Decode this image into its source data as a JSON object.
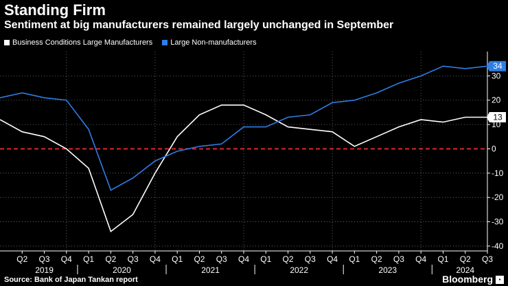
{
  "header": {
    "title": "Standing Firm",
    "subtitle": "Sentiment at big manufacturers remained largely unchanged in September"
  },
  "footer": {
    "source": "Source: Bank of Japan Tankan report",
    "brand": "Bloomberg"
  },
  "colors": {
    "manufacturers": "#ffffff",
    "non_manufacturers": "#2f7ee6",
    "zero_line": "#e0262b",
    "grid": "#777777"
  },
  "chart_data": {
    "type": "line",
    "title": "Standing Firm",
    "subtitle": "Sentiment at big manufacturers remained largely unchanged in September",
    "ylim": [
      -42,
      40
    ],
    "yticks": [
      -40,
      -30,
      -20,
      -10,
      0,
      10,
      20,
      30
    ],
    "grid": true,
    "legend_position": "top-left",
    "x_quarter_labels": [
      "Q2",
      "Q3",
      "Q4",
      "Q1",
      "Q2",
      "Q3",
      "Q4",
      "Q1",
      "Q2",
      "Q3",
      "Q4",
      "Q1",
      "Q2",
      "Q3",
      "Q4",
      "Q1",
      "Q2",
      "Q3",
      "Q4",
      "Q1",
      "Q2",
      "Q3"
    ],
    "x_year_labels": [
      "2019",
      "2020",
      "2021",
      "2022",
      "2023",
      "2024"
    ],
    "categories": [
      "2019-Q1",
      "2019-Q2",
      "2019-Q3",
      "2019-Q4",
      "2020-Q1",
      "2020-Q2",
      "2020-Q3",
      "2020-Q4",
      "2021-Q1",
      "2021-Q2",
      "2021-Q3",
      "2021-Q4",
      "2022-Q1",
      "2022-Q2",
      "2022-Q3",
      "2022-Q4",
      "2023-Q1",
      "2023-Q2",
      "2023-Q3",
      "2023-Q4",
      "2024-Q1",
      "2024-Q2",
      "2024-Q3"
    ],
    "series": [
      {
        "name": "Business Conditions Large Manufacturers",
        "values": [
          12,
          7,
          5,
          0,
          -8,
          -34,
          -27,
          -10,
          5,
          14,
          18,
          18,
          14,
          9,
          8,
          7,
          1,
          5,
          9,
          12,
          11,
          13,
          13
        ],
        "last_label": "13"
      },
      {
        "name": "Large Non-manufacturers",
        "values": [
          21,
          23,
          21,
          20,
          8,
          -17,
          -12,
          -5,
          -1,
          1,
          2,
          9,
          9,
          13,
          14,
          19,
          20,
          23,
          27,
          30,
          34,
          33,
          34
        ],
        "last_label": "34"
      }
    ]
  }
}
